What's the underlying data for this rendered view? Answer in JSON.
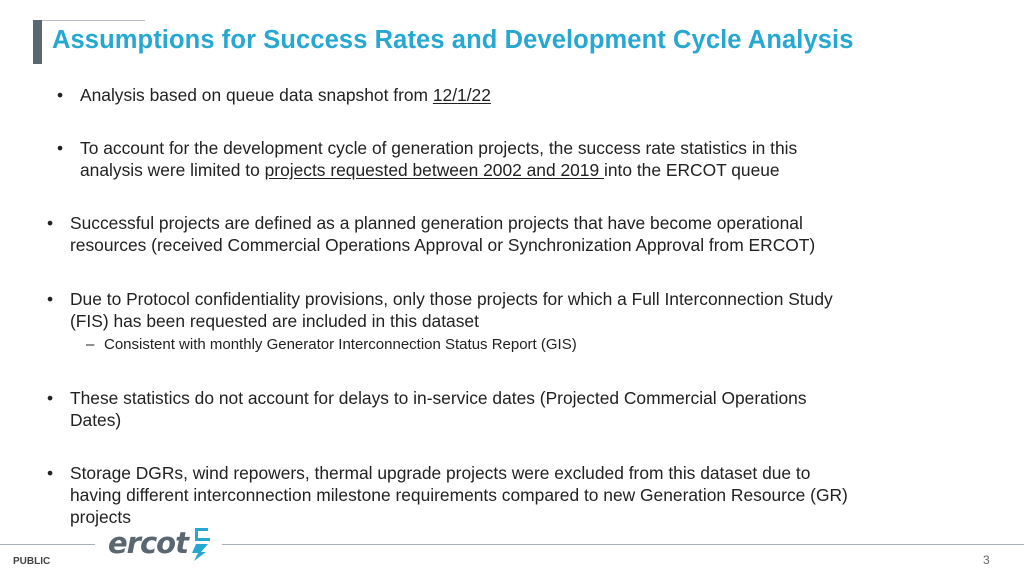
{
  "title": "Assumptions for Success Rates and Development Cycle Analysis",
  "bullets": [
    {
      "pre": "Analysis based on queue data snapshot from ",
      "link": "12/1/22",
      "post": ""
    },
    {
      "line1": "To account for the development cycle of generation projects, the success rate statistics in this",
      "line2_pre": "analysis were limited to ",
      "link": "projects requested between 2002 and 2019 ",
      "line2_post": "into the ERCOT queue"
    },
    {
      "line1": "Successful projects are defined as a planned generation projects that have become operational",
      "line2": "resources (received Commercial Operations Approval or Synchronization Approval from ERCOT)"
    },
    {
      "line1": "Due to Protocol confidentiality provisions, only those projects for which a Full Interconnection Study",
      "line2": "(FIS) has been requested are included in this dataset"
    },
    {
      "line1": "These statistics do not account for delays to in-service dates (Projected Commercial Operations",
      "line2": "Dates)"
    },
    {
      "line1": "Storage DGRs, wind repowers, thermal upgrade projects were excluded from this dataset due to",
      "line2": "having different interconnection milestone requirements compared to new Generation Resource (GR)",
      "line3": "projects"
    }
  ],
  "sub_bullet": "Consistent with monthly Generator Interconnection Status Report (GIS)",
  "bullet_char": "•",
  "dash_char": "–",
  "footer": {
    "label": "PUBLIC",
    "page": "3",
    "logo_text": "ercot"
  }
}
